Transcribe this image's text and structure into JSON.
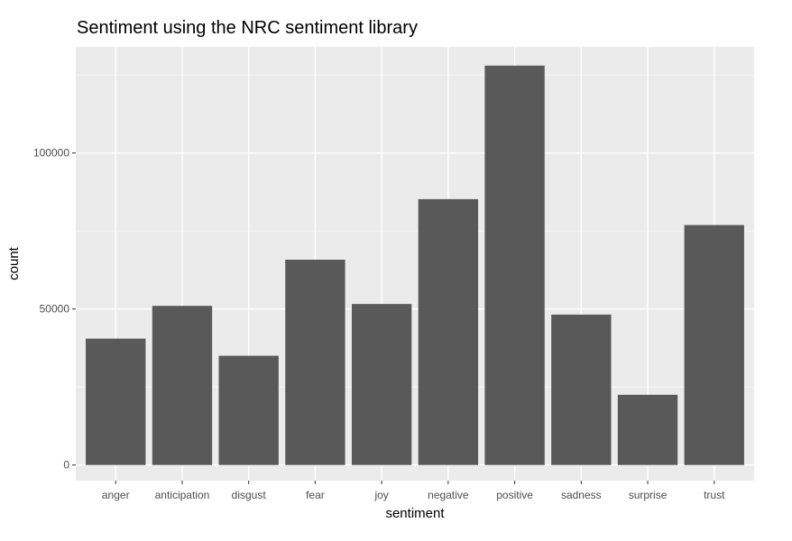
{
  "chart_data": {
    "type": "bar",
    "title": "Sentiment using the NRC sentiment library",
    "xlabel": "sentiment",
    "ylabel": "count",
    "categories": [
      "anger",
      "anticipation",
      "disgust",
      "fear",
      "joy",
      "negative",
      "positive",
      "sadness",
      "surprise",
      "trust"
    ],
    "values": [
      40500,
      51000,
      35000,
      65800,
      51600,
      85200,
      128000,
      48200,
      22500,
      76900
    ],
    "ylim": [
      -5000,
      134000
    ],
    "yticks": [
      0,
      50000,
      100000
    ],
    "ytick_labels": [
      "0",
      "50000",
      "100000"
    ],
    "grid": true,
    "legend": "none",
    "colors": {
      "bar": "#595959",
      "panel": "#ebebeb",
      "grid_major": "#ffffff",
      "grid_minor": "#f5f5f5"
    }
  }
}
